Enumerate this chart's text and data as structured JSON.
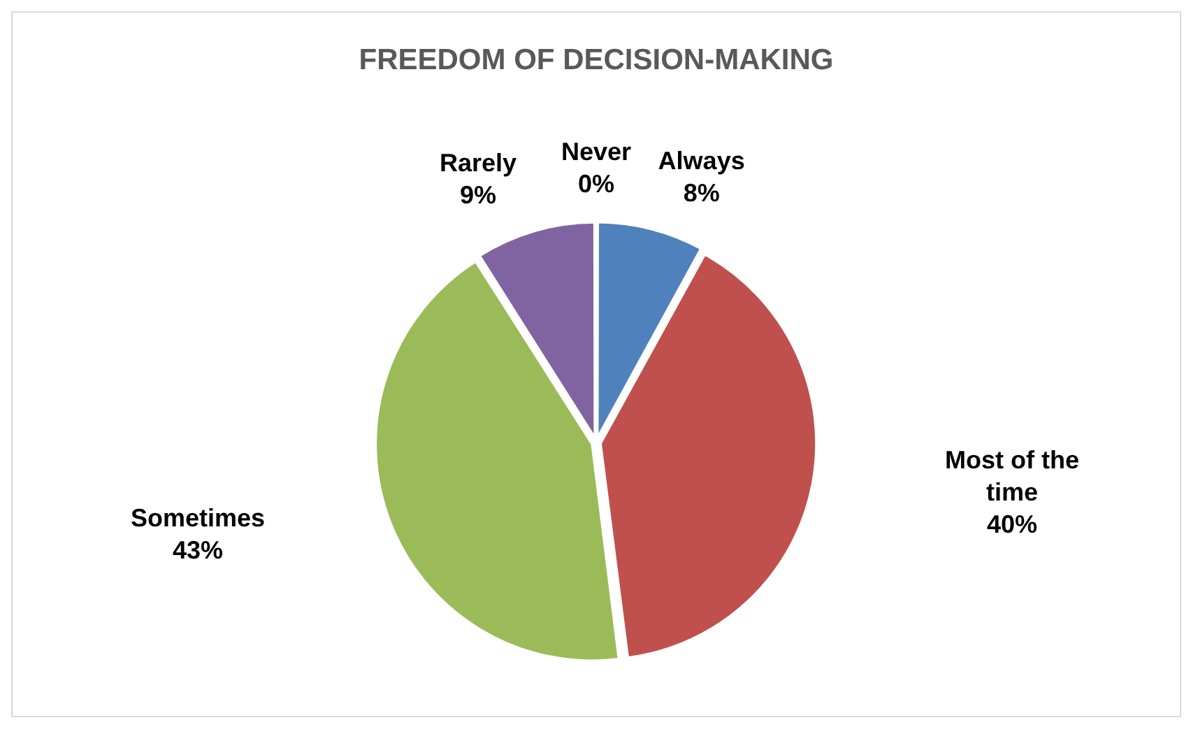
{
  "chart_data": {
    "type": "pie",
    "title": "FREEDOM OF DECISION-MAKING",
    "categories": [
      "Always",
      "Most of the time",
      "Sometimes",
      "Rarely",
      "Never"
    ],
    "values": [
      8,
      40,
      43,
      9,
      0
    ],
    "value_labels": [
      "8%",
      "40%",
      "43%",
      "9%",
      "0%"
    ],
    "colors": [
      "#4f81bd",
      "#c0504d",
      "#9bbb59",
      "#8064a2",
      "#4bacc6"
    ],
    "legend": false
  }
}
